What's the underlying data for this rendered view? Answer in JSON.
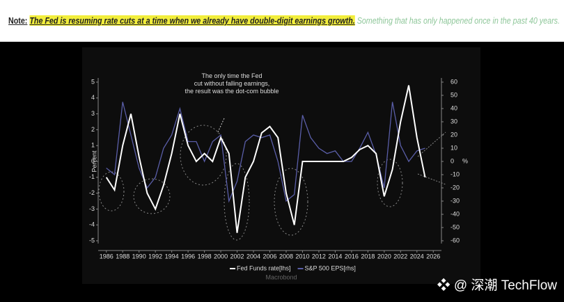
{
  "header": {
    "label": "Note:",
    "highlight": "The Fed is resuming rate cuts at a time when we already have double-digit earnings growth.",
    "comment": "Something that has only happened once in the past 40 years."
  },
  "watermark": "@ 深潮 TechFlow",
  "chart_data": {
    "type": "line",
    "annotation": "The only time the Fed cut without falling earnings, the result was the dot-com bubble",
    "ylabel": "Percent",
    "y2label": "%",
    "source": "Macrobond",
    "x": [
      1986,
      1987,
      1988,
      1989,
      1990,
      1991,
      1992,
      1993,
      1994,
      1995,
      1996,
      1997,
      1998,
      1999,
      2000,
      2001,
      2002,
      2003,
      2004,
      2005,
      2006,
      2007,
      2008,
      2009,
      2010,
      2011,
      2012,
      2013,
      2014,
      2015,
      2016,
      2017,
      2018,
      2019,
      2020,
      2021,
      2022,
      2023,
      2024,
      2025
    ],
    "series": [
      {
        "name": "Fed Funds rate[lhs]",
        "color": "#ffffff",
        "values": [
          -1,
          -1.8,
          1,
          3,
          0.3,
          -2,
          -3,
          -1.5,
          0.5,
          3,
          1,
          0,
          0.5,
          0,
          1.5,
          0.5,
          -4.5,
          -1,
          0,
          1.8,
          2.2,
          1.5,
          -2,
          -4,
          0,
          0,
          0,
          0,
          0,
          0,
          0.25,
          0.75,
          1,
          0.5,
          -2.2,
          -0.5,
          2.5,
          4.8,
          1.5,
          -1
        ]
      },
      {
        "name": "S&P 500 EPS[rhs]",
        "color": "#5a5ea8",
        "axis": "y2",
        "values": [
          -5,
          -10,
          45,
          20,
          -5,
          -20,
          -12,
          10,
          20,
          40,
          15,
          15,
          0,
          15,
          20,
          -30,
          -15,
          15,
          20,
          18,
          20,
          0,
          -30,
          -25,
          35,
          18,
          10,
          6,
          8,
          0,
          0,
          10,
          22,
          5,
          -20,
          45,
          12,
          0,
          8,
          10
        ]
      }
    ],
    "xlim": [
      1985,
      2027
    ],
    "xticks": [
      1986,
      1988,
      1990,
      1992,
      1994,
      1996,
      1998,
      2000,
      2002,
      2004,
      2006,
      2008,
      2010,
      2012,
      2014,
      2016,
      2018,
      2020,
      2022,
      2024,
      2026
    ],
    "ylim": [
      -5,
      5
    ],
    "yticks": [
      -5,
      -4,
      -3,
      -2,
      -1,
      0,
      1,
      2,
      3,
      4,
      5
    ],
    "y2lim": [
      -60,
      60
    ],
    "y2ticks": [
      -60,
      -50,
      -40,
      -30,
      -20,
      -10,
      0,
      10,
      20,
      30,
      40,
      50,
      60
    ]
  }
}
